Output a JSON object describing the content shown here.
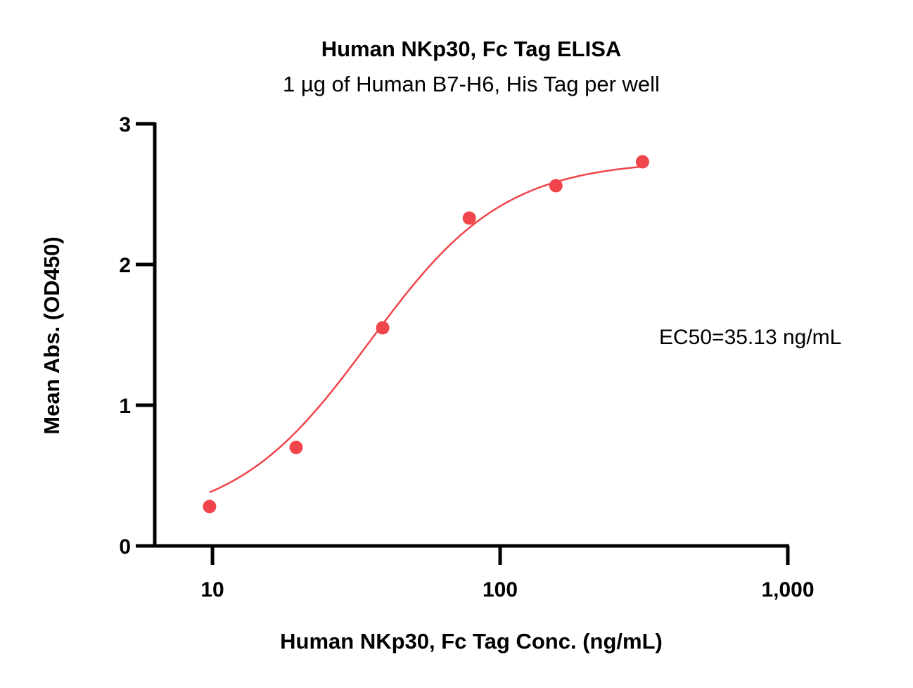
{
  "chart_data": {
    "type": "scatter",
    "title": "Human NKp30, Fc Tag ELISA",
    "subtitle": "1 µg of Human B7-H6, His Tag per well",
    "xlabel": "Human NKp30, Fc Tag Conc. (ng/mL)",
    "ylabel": "Mean Abs. (OD450)",
    "x_scale": "log",
    "xlim": [
      6.3,
      1000
    ],
    "ylim": [
      0,
      3
    ],
    "x_ticks": [
      10,
      100,
      1000
    ],
    "x_tick_labels": [
      "10",
      "100",
      "1,000"
    ],
    "y_ticks": [
      0,
      1,
      2,
      3
    ],
    "y_tick_labels": [
      "0",
      "1",
      "2",
      "3"
    ],
    "grid": false,
    "annotation": "EC50=35.13 ng/mL",
    "series": [
      {
        "color": "#f0454a",
        "x": [
          9.77,
          19.53,
          39.06,
          78.13,
          156.25,
          312.5
        ],
        "y": [
          0.28,
          0.7,
          1.55,
          2.33,
          2.56,
          2.73
        ],
        "fit": "4PL",
        "fit_params": {
          "bottom": 0.16,
          "top": 2.74,
          "ec50": 35.13,
          "hill": 1.85
        }
      }
    ]
  }
}
